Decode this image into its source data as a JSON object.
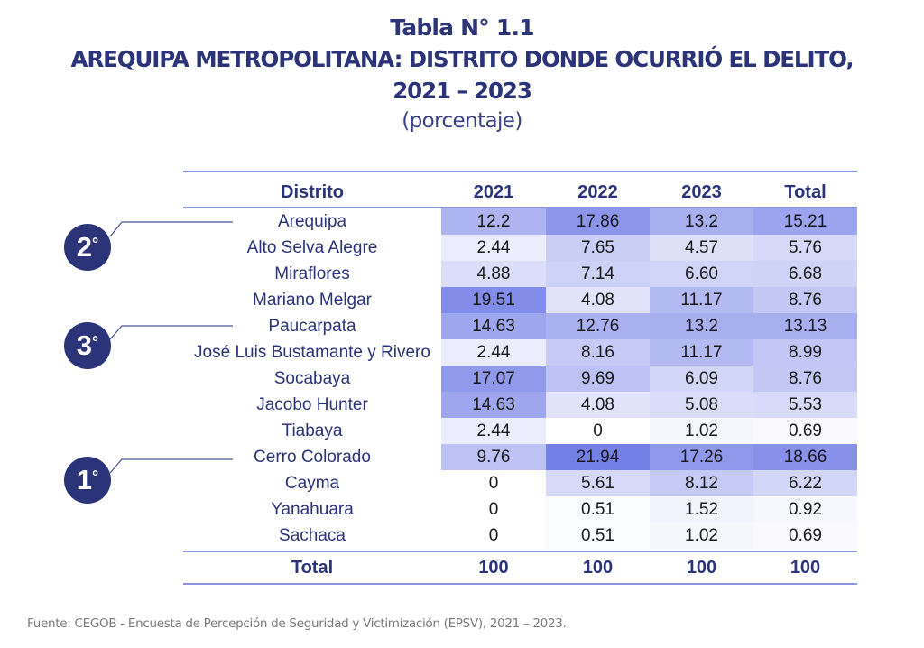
{
  "title": {
    "line1": "Tabla N° 1.1",
    "line2": "AREQUIPA METROPOLITANA: DISTRITO DONDE OCURRIÓ EL DELITO,",
    "line3": "2021 – 2023",
    "line4": "(porcentaje)"
  },
  "table": {
    "headers": [
      "Distrito",
      "2021",
      "2022",
      "2023",
      "Total"
    ],
    "rows": [
      {
        "district": "Arequipa",
        "values": [
          "12.2",
          "17.86",
          "13.2",
          "15.21"
        ]
      },
      {
        "district": "Alto Selva Alegre",
        "values": [
          "2.44",
          "7.65",
          "4.57",
          "5.76"
        ]
      },
      {
        "district": "Miraflores",
        "values": [
          "4.88",
          "7.14",
          "6.60",
          "6.68"
        ]
      },
      {
        "district": "Mariano Melgar",
        "values": [
          "19.51",
          "4.08",
          "11.17",
          "8.76"
        ]
      },
      {
        "district": "Paucarpata",
        "values": [
          "14.63",
          "12.76",
          "13.2",
          "13.13"
        ]
      },
      {
        "district": "José Luis Bustamante y Rivero",
        "values": [
          "2.44",
          "8.16",
          "11.17",
          "8.99"
        ]
      },
      {
        "district": "Socabaya",
        "values": [
          "17.07",
          "9.69",
          "6.09",
          "8.76"
        ]
      },
      {
        "district": "Jacobo Hunter",
        "values": [
          "14.63",
          "4.08",
          "5.08",
          "5.53"
        ]
      },
      {
        "district": "Tiabaya",
        "values": [
          "2.44",
          "0",
          "1.02",
          "0.69"
        ]
      },
      {
        "district": "Cerro Colorado",
        "values": [
          "9.76",
          "21.94",
          "17.26",
          "18.66"
        ]
      },
      {
        "district": "Cayma",
        "values": [
          "0",
          "5.61",
          "8.12",
          "6.22"
        ]
      },
      {
        "district": "Yanahuara",
        "values": [
          "0",
          "0.51",
          "1.52",
          "0.92"
        ]
      },
      {
        "district": "Sachaca",
        "values": [
          "0",
          "0.51",
          "1.02",
          "0.69"
        ]
      }
    ],
    "total": {
      "label": "Total",
      "values": [
        "100",
        "100",
        "100",
        "100"
      ]
    }
  },
  "rank_badges": [
    {
      "rank": "2",
      "suffix": "°",
      "district": "Arequipa"
    },
    {
      "rank": "3",
      "suffix": "°",
      "district": "Paucarpata"
    },
    {
      "rank": "1",
      "suffix": "°",
      "district": "Cerro Colorado"
    }
  ],
  "heatmap": {
    "low_color": "#ffffff",
    "high_color": "#7480e6",
    "max_value": 21.94
  },
  "colors": {
    "title": "#2b3379",
    "rule": "#8a93dd",
    "badge": "#2b3379"
  },
  "source": "Fuente: CEGOB - Encuesta de Percepción de Seguridad y Victimización (EPSV), 2021 – 2023."
}
